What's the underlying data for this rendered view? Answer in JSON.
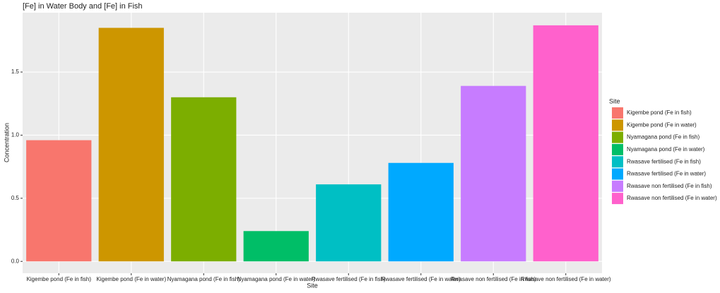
{
  "chart_data": {
    "type": "bar",
    "title": "[Fe] in Water Body and [Fe] in Fish",
    "x_label": "Site",
    "y_label": "Concentration",
    "legend_title": "Site",
    "categories": [
      "Kigembe pond (Fe in fish)",
      "Kigembe pond (Fe in water)",
      "Nyamagana pond (Fe in fish)",
      "Nyamagana pond (Fe in water)",
      "Rwasave fertilised (Fe in fish)",
      "Rwasave fertilised (Fe in water)",
      "Rwasave non fertilised (Fe in fish)",
      "Rwasave non fertilised (Fe in water)"
    ],
    "values": [
      0.96,
      1.85,
      1.3,
      0.24,
      0.61,
      0.78,
      1.39,
      1.87
    ],
    "colors": [
      "#F8766D",
      "#CD9600",
      "#7CAE00",
      "#00BE67",
      "#00BFC4",
      "#00A9FF",
      "#C77CFF",
      "#FF61CC"
    ],
    "ylim": [
      -0.094,
      1.97
    ],
    "yticks": [
      {
        "value": 0,
        "label": "0.0"
      },
      {
        "value": 0.5,
        "label": "0.5"
      },
      {
        "value": 1,
        "label": "1.0"
      },
      {
        "value": 1.5,
        "label": "1.5"
      }
    ],
    "grid": true,
    "legend": "right"
  }
}
